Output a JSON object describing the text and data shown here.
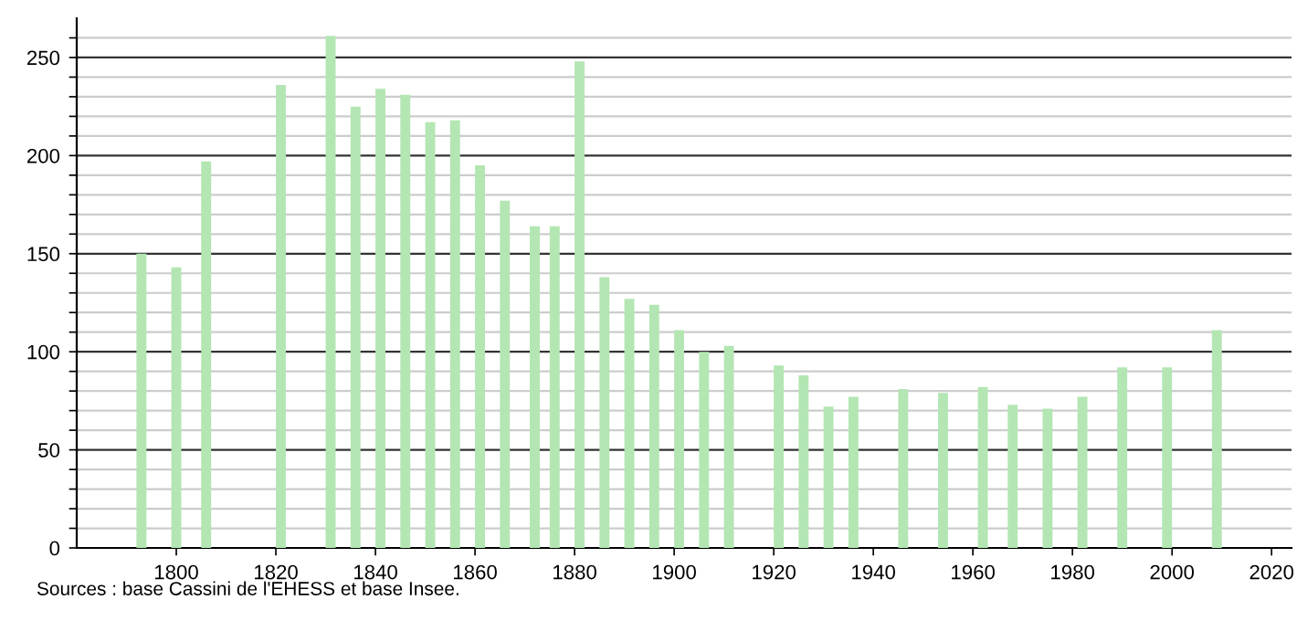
{
  "chart_data": {
    "type": "bar",
    "x": [
      1793,
      1800,
      1806,
      1821,
      1831,
      1836,
      1841,
      1846,
      1851,
      1856,
      1861,
      1866,
      1872,
      1876,
      1881,
      1886,
      1891,
      1896,
      1901,
      1906,
      1911,
      1921,
      1926,
      1931,
      1936,
      1946,
      1954,
      1962,
      1968,
      1975,
      1982,
      1990,
      1999,
      2009
    ],
    "values": [
      150,
      143,
      197,
      236,
      261,
      225,
      234,
      231,
      217,
      218,
      195,
      177,
      164,
      164,
      248,
      138,
      127,
      124,
      111,
      100,
      103,
      93,
      88,
      72,
      77,
      81,
      79,
      82,
      73,
      71,
      77,
      92,
      92,
      111
    ],
    "color": "#b3e6b3",
    "xlim": [
      1780,
      2024
    ],
    "xticks": [
      1800,
      1820,
      1840,
      1860,
      1880,
      1900,
      1920,
      1940,
      1960,
      1980,
      2000,
      2020
    ],
    "ylim": [
      0,
      270
    ],
    "yticks": [
      0,
      {
        "value": 10,
        "label": null
      },
      {
        "value": 20,
        "label": null
      },
      {
        "value": 30,
        "label": null
      },
      {
        "value": 40,
        "label": null
      },
      50,
      {
        "value": 60,
        "label": null
      },
      {
        "value": 70,
        "label": null
      },
      {
        "value": 80,
        "label": null
      },
      {
        "value": 90,
        "label": null
      },
      100,
      {
        "value": 110,
        "label": null
      },
      {
        "value": 120,
        "label": null
      },
      {
        "value": 130,
        "label": null
      },
      {
        "value": 140,
        "label": null
      },
      150,
      {
        "value": 160,
        "label": null
      },
      {
        "value": 170,
        "label": null
      },
      {
        "value": 180,
        "label": null
      },
      {
        "value": 190,
        "label": null
      },
      200,
      {
        "value": 210,
        "label": null
      },
      {
        "value": 220,
        "label": null
      },
      {
        "value": 230,
        "label": null
      },
      {
        "value": 240,
        "label": null
      },
      250,
      {
        "value": 260,
        "label": null
      }
    ],
    "grid": "y",
    "annotations": [
      "Sources : base Cassini de l'EHESS et base Insee."
    ]
  }
}
